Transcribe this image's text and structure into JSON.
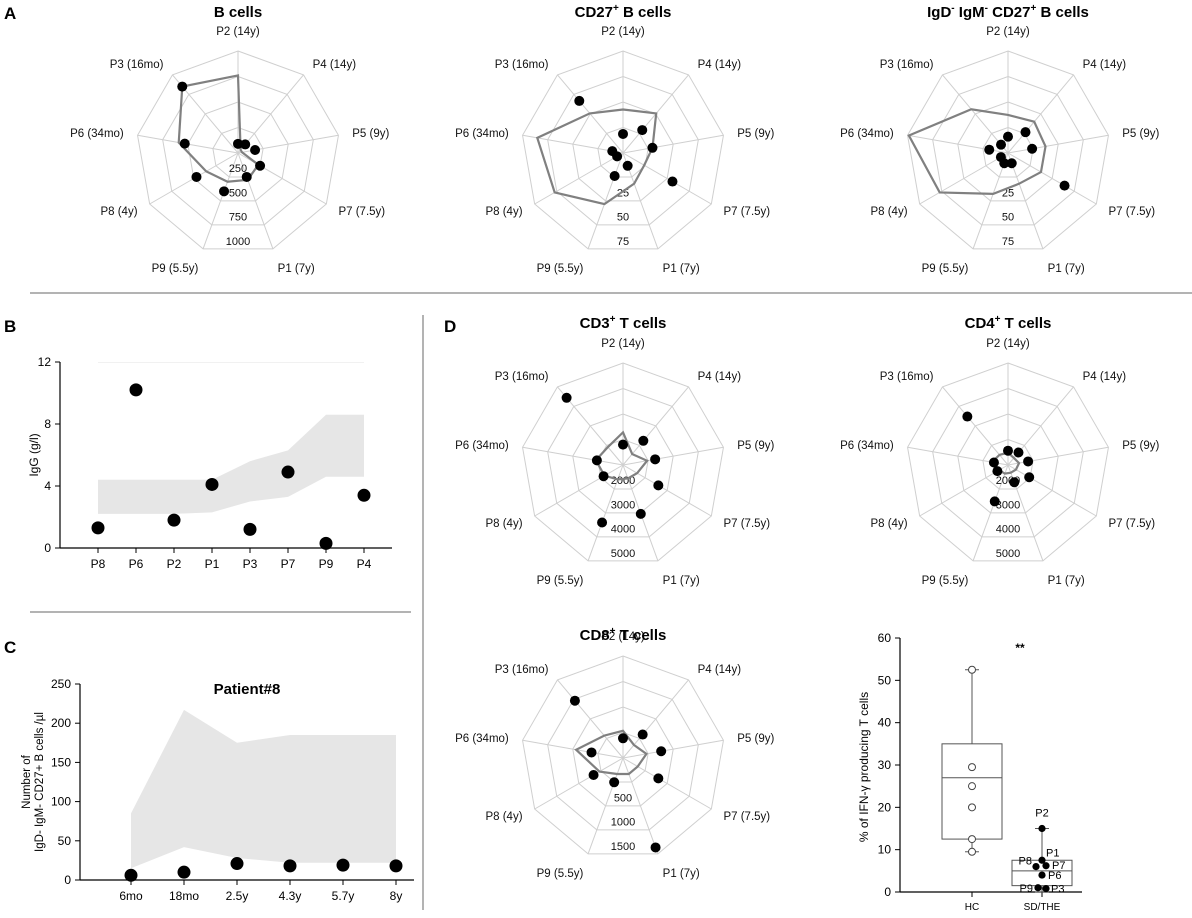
{
  "panel_letters": {
    "a": "A",
    "b": "B",
    "c": "C",
    "d": "D"
  },
  "radar_axes": [
    "P2 (14y)",
    "P4 (14y)",
    "P5 (9y)",
    "P7 (7.5y)",
    "P1 (7y)",
    "P9 (5.5y)",
    "P8 (4y)",
    "P6 (34mo)",
    "P3 (16mo)"
  ],
  "colors": {
    "grid": "#cfcfcf",
    "band": "#e6e6e6",
    "line": "#808080",
    "dot": "#000000",
    "divider": "#9a9a9a"
  },
  "chart_data": [
    {
      "id": "bcells",
      "type": "radar",
      "title_parts": [
        {
          "t": "B cells"
        }
      ],
      "max": 1000,
      "ring_labels": [
        "250",
        "500",
        "750",
        "1000"
      ],
      "reference_line": [
        760,
        40,
        40,
        230,
        280,
        300,
        360,
        590,
        850
      ],
      "points": [
        90,
        110,
        170,
        250,
        250,
        400,
        470,
        530,
        850
      ]
    },
    {
      "id": "cd27",
      "type": "radar",
      "title_parts": [
        {
          "t": "CD27"
        },
        {
          "t": "+",
          "sup": true
        },
        {
          "t": " B cells"
        }
      ],
      "max": 75,
      "ring_labels": [
        "25",
        "50",
        "75"
      ],
      "reference_line": [
        32,
        38,
        22,
        18,
        24,
        40,
        58,
        64,
        38
      ],
      "points": [
        14,
        22,
        22,
        42,
        10,
        18,
        5,
        8,
        50
      ]
    },
    {
      "id": "igd",
      "type": "radar",
      "title_parts": [
        {
          "t": "IgD"
        },
        {
          "t": "-",
          "sup": true
        },
        {
          "t": " IgM"
        },
        {
          "t": "-",
          "sup": true
        },
        {
          "t": " CD27"
        },
        {
          "t": "+",
          "sup": true
        },
        {
          "t": " B cells"
        }
      ],
      "max": 75,
      "ring_labels": [
        "25",
        "50",
        "75"
      ],
      "reference_line": [
        28,
        30,
        28,
        28,
        24,
        32,
        58,
        74,
        42
      ],
      "points": [
        12,
        20,
        18,
        48,
        8,
        8,
        6,
        14,
        8
      ]
    },
    {
      "id": "igg",
      "type": "scatter",
      "categories": [
        "P8",
        "P6",
        "P2",
        "P1",
        "P3",
        "P7",
        "P9",
        "P4"
      ],
      "values": [
        1.3,
        10.2,
        1.8,
        4.1,
        1.2,
        4.9,
        0.3,
        3.4
      ],
      "band_low": [
        2.2,
        2.2,
        2.2,
        2.3,
        3.0,
        3.3,
        4.6,
        4.6
      ],
      "band_high": [
        4.4,
        4.4,
        4.4,
        4.4,
        5.6,
        6.3,
        8.6,
        8.6
      ],
      "ylabel": "IgG (g/l)",
      "ylim": [
        0,
        12
      ],
      "yticks": [
        "0",
        "4",
        "8",
        "12"
      ]
    },
    {
      "id": "patient8",
      "type": "scatter",
      "title": "Patient#8",
      "categories": [
        "6mo",
        "18mo",
        "2.5y",
        "4.3y",
        "5.7y",
        "8y"
      ],
      "values": [
        6,
        10,
        21,
        18,
        19,
        18
      ],
      "band_low": [
        15,
        42,
        28,
        22,
        22,
        22
      ],
      "band_high": [
        85,
        217,
        175,
        185,
        185,
        185
      ],
      "ylabel_lines": [
        "Number of",
        "IgD- IgM- CD27+ B cells /µl"
      ],
      "ylim": [
        0,
        250
      ],
      "yticks": [
        "0",
        "50",
        "100",
        "150",
        "200",
        "250"
      ]
    },
    {
      "id": "cd3",
      "type": "radar",
      "title_parts": [
        {
          "t": "CD3"
        },
        {
          "t": "+",
          "sup": true
        },
        {
          "t": " T cells"
        }
      ],
      "max": 5000,
      "ring_labels": [
        "2000",
        "3000",
        "4000",
        "5000"
      ],
      "reference_line": [
        1600,
        700,
        1200,
        800,
        700,
        750,
        1050,
        1350,
        1150
      ],
      "points": [
        1000,
        1550,
        1600,
        2000,
        2550,
        3000,
        1100,
        1300,
        4300
      ]
    },
    {
      "id": "cd4",
      "type": "radar",
      "title_parts": [
        {
          "t": "CD4"
        },
        {
          "t": "+",
          "sup": true
        },
        {
          "t": " T cells"
        }
      ],
      "max": 5000,
      "ring_labels": [
        "2000",
        "3000",
        "4000",
        "5000"
      ],
      "reference_line": [
        600,
        450,
        550,
        450,
        400,
        450,
        500,
        800,
        650
      ],
      "points": [
        700,
        800,
        1000,
        1200,
        900,
        1900,
        600,
        700,
        3100
      ]
    },
    {
      "id": "cd8",
      "type": "radar",
      "title_parts": [
        {
          "t": "CD8"
        },
        {
          "t": "+",
          "sup": true
        },
        {
          "t": " T cells"
        }
      ],
      "max": 1500,
      "ring_labels": [
        "500",
        "1000",
        "1500"
      ],
      "reference_line": [
        400,
        250,
        350,
        250,
        250,
        250,
        400,
        700,
        430
      ],
      "points": [
        290,
        450,
        570,
        600,
        1400,
        380,
        500,
        470,
        1100
      ]
    },
    {
      "id": "ifng",
      "type": "box",
      "categories": [
        "HC",
        "SD/THE"
      ],
      "ylabel": "% of IFN-γ producing T cells",
      "ylim": [
        0,
        60
      ],
      "yticks": [
        "0",
        "10",
        "20",
        "30",
        "40",
        "50",
        "60"
      ],
      "significance": "**",
      "hc": {
        "min": 9.5,
        "q1": 12.5,
        "median": 27,
        "q3": 35,
        "max": 52.5,
        "points": [
          52.5,
          29.5,
          25,
          20,
          12.5,
          9.5
        ]
      },
      "sd": {
        "min": 0,
        "q1": 1.5,
        "median": 5,
        "q3": 7.5,
        "max": 15,
        "points": [
          {
            "label": "P2",
            "v": 15
          },
          {
            "label": "P1",
            "v": 7.5
          },
          {
            "label": "P8",
            "v": 6
          },
          {
            "label": "P7",
            "v": 6.2
          },
          {
            "label": "P6",
            "v": 4
          },
          {
            "label": "P9",
            "v": 1
          },
          {
            "label": "P3",
            "v": 0.8
          }
        ]
      }
    }
  ]
}
